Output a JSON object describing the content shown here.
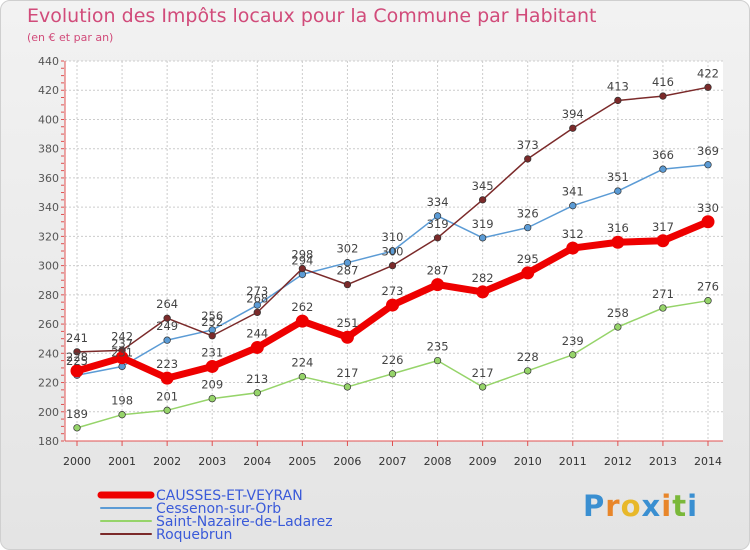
{
  "title": "Evolution des Impôts locaux pour la Commune par Habitant",
  "subtitle": "(en € et par an)",
  "logo": {
    "text": "Proxiti",
    "colors": [
      "#3a8fd1",
      "#e8862a",
      "#e8b82a",
      "#3a8fd1",
      "#e8862a",
      "#7ab83a",
      "#3a8fd1"
    ]
  },
  "chart_data": {
    "type": "line",
    "title": "Evolution des Impôts locaux pour la Commune par Habitant",
    "x": [
      2000,
      2001,
      2002,
      2003,
      2004,
      2005,
      2006,
      2007,
      2008,
      2009,
      2010,
      2011,
      2012,
      2013,
      2014
    ],
    "ylim": [
      180,
      440
    ],
    "yticks": [
      180,
      200,
      220,
      240,
      260,
      280,
      300,
      320,
      340,
      360,
      380,
      400,
      420,
      440
    ],
    "grid": true,
    "legend_position": "bottom-left",
    "series": [
      {
        "name": "CAUSSES-ET-VEYRAN",
        "color": "#ee0000",
        "values": [
          228,
          237,
          223,
          231,
          244,
          262,
          251,
          273,
          287,
          282,
          295,
          312,
          316,
          317,
          330
        ]
      },
      {
        "name": "Cessenon-sur-Orb",
        "color": "#5b9bd5",
        "values": [
          225,
          231,
          249,
          256,
          273,
          294,
          302,
          310,
          334,
          319,
          326,
          341,
          351,
          366,
          369
        ]
      },
      {
        "name": "Saint-Nazaire-de-Ladarez",
        "color": "#96d46a",
        "values": [
          189,
          198,
          201,
          209,
          213,
          224,
          217,
          226,
          235,
          217,
          228,
          239,
          258,
          271,
          276
        ]
      },
      {
        "name": "Roquebrun",
        "color": "#7b2a2a",
        "values": [
          241,
          242,
          264,
          252,
          268,
          298,
          287,
          300,
          319,
          345,
          373,
          394,
          413,
          416,
          422
        ]
      }
    ]
  }
}
